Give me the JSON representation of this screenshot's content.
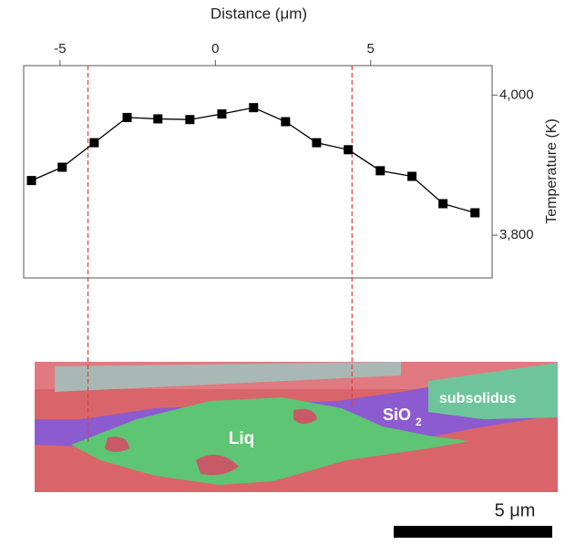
{
  "chart_data": {
    "type": "line",
    "xlabel": "Distance (μm)",
    "ylabel": "Temperature (K)",
    "x": [
      -5.92,
      -4.93,
      -3.9,
      -2.84,
      -1.85,
      -0.82,
      0.21,
      1.23,
      2.26,
      3.26,
      4.28,
      5.31,
      6.33,
      7.33,
      8.36
    ],
    "series": [
      {
        "color": "#000000",
        "values": [
          3878,
          3897,
          3932,
          3968,
          3966,
          3965,
          3973,
          3982,
          3962,
          3932,
          3922,
          3892,
          3884,
          3845,
          3832
        ]
      }
    ],
    "xlim": [
      -6.17,
      8.91
    ],
    "ylim": [
      3739,
      4042
    ],
    "xticks": [
      -5,
      0,
      5
    ],
    "yticks": [
      {
        "value": 4000,
        "label": "4,000"
      },
      {
        "value": 3800,
        "label": "3,800"
      }
    ],
    "vlines": {
      "color": "#e0403a",
      "x": [
        -4.1,
        4.4
      ]
    }
  },
  "micrograph": {
    "labels": [
      "Liq",
      "SiO",
      "2",
      "subsolidus"
    ],
    "scale_bar": "5 μm"
  }
}
